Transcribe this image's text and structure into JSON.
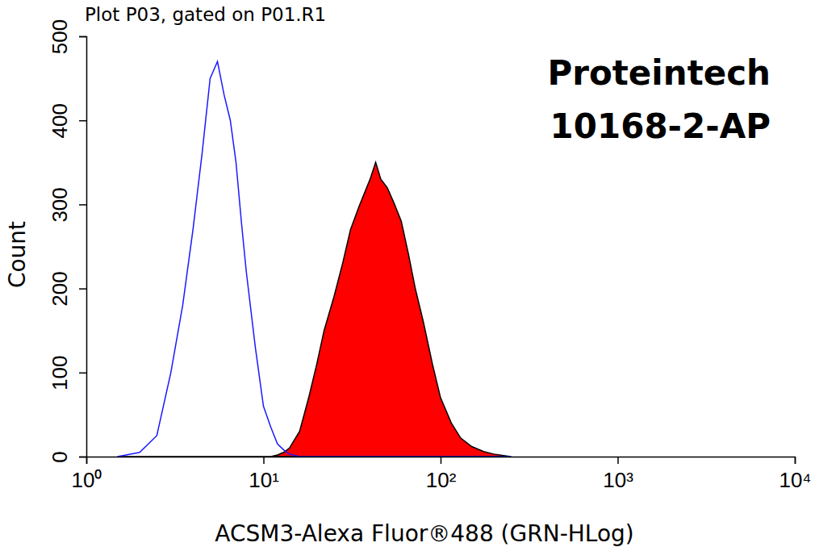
{
  "chart_data": {
    "type": "line",
    "title": "Plot P03, gated on P01.R1",
    "annotations": [
      "Proteintech",
      "10168-2-AP"
    ],
    "x_label": "ACSM3-Alexa Fluor®488 (GRN-HLog)",
    "y_label": "Count",
    "log": "x",
    "grid": false,
    "x": [
      1.5,
      2,
      2.5,
      3,
      3.5,
      4,
      4.5,
      5,
      5.5,
      6,
      6.5,
      7,
      7.5,
      8,
      9,
      10,
      11,
      12,
      13,
      14,
      16,
      18,
      20,
      22,
      25,
      28,
      31,
      35,
      40,
      43,
      46,
      50,
      55,
      60,
      66,
      72,
      80,
      90,
      100,
      115,
      130,
      150,
      175,
      200,
      250
    ],
    "series": [
      {
        "type": "line",
        "color": "#1a1aff",
        "values": [
          0,
          5,
          25,
          100,
          180,
          270,
          360,
          450,
          470,
          430,
          400,
          350,
          280,
          220,
          130,
          60,
          35,
          15,
          8,
          3,
          0,
          0,
          0,
          0,
          0,
          0,
          0,
          0,
          0,
          0,
          0,
          0,
          0,
          0,
          0,
          0,
          0,
          0,
          0,
          0,
          0,
          0,
          0,
          0,
          0
        ]
      },
      {
        "type": "area",
        "color": "#ff0000",
        "values": [
          0,
          0,
          0,
          0,
          0,
          0,
          0,
          0,
          0,
          0,
          0,
          0,
          0,
          0,
          0,
          0,
          0,
          2,
          5,
          10,
          30,
          70,
          110,
          150,
          190,
          230,
          270,
          300,
          330,
          350,
          330,
          320,
          300,
          280,
          240,
          200,
          160,
          110,
          70,
          40,
          22,
          12,
          6,
          3,
          0
        ]
      }
    ],
    "xlim": [
      1,
      10000
    ],
    "xticks": [
      {
        "value": 1,
        "label": "10⁰"
      },
      {
        "value": 10,
        "label": "10¹"
      },
      {
        "value": 100,
        "label": "10²"
      },
      {
        "value": 1000,
        "label": "10³"
      },
      {
        "value": 10000,
        "label": "10⁴"
      }
    ],
    "ylim": [
      0,
      500
    ],
    "yticks": [
      0,
      100,
      200,
      300,
      400,
      500
    ]
  }
}
